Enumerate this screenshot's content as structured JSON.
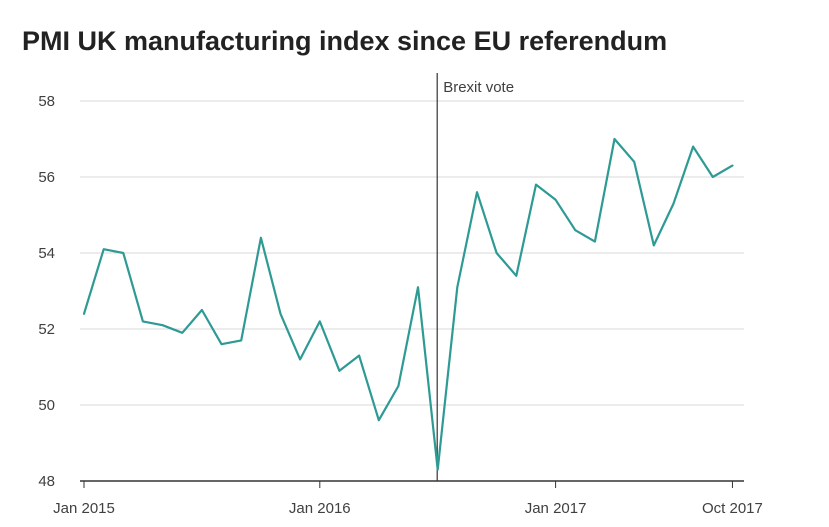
{
  "chart_data": {
    "type": "line",
    "title": "PMI UK manufacturing index since EU referendum",
    "xlabel": "",
    "ylabel": "",
    "ylim": [
      48,
      58
    ],
    "yticks": [
      "48",
      "50",
      "52",
      "54",
      "56",
      "58"
    ],
    "xticks": [
      "Jan 2015",
      "Jan 2016",
      "Jan 2017",
      "Oct 2017"
    ],
    "grid": true,
    "annotation": {
      "label": "Brexit vote",
      "x": "Jul 2016"
    },
    "series": [
      {
        "color": "#2e9a94",
        "x": [
          "Jan 2015",
          "Feb 2015",
          "Mar 2015",
          "Apr 2015",
          "May 2015",
          "Jun 2015",
          "Jul 2015",
          "Aug 2015",
          "Sep 2015",
          "Oct 2015",
          "Nov 2015",
          "Dec 2015",
          "Jan 2016",
          "Feb 2016",
          "Mar 2016",
          "Apr 2016",
          "May 2016",
          "Jun 2016",
          "Jul 2016",
          "Aug 2016",
          "Sep 2016",
          "Oct 2016",
          "Nov 2016",
          "Dec 2016",
          "Jan 2017",
          "Feb 2017",
          "Mar 2017",
          "Apr 2017",
          "May 2017",
          "Jun 2017",
          "Jul 2017",
          "Aug 2017",
          "Sep 2017",
          "Oct 2017"
        ],
        "values": [
          52.4,
          54.1,
          54.0,
          52.2,
          52.1,
          51.9,
          52.5,
          51.6,
          51.7,
          54.4,
          52.4,
          51.2,
          52.2,
          50.9,
          51.3,
          49.6,
          50.5,
          53.1,
          48.3,
          53.1,
          55.6,
          54.0,
          53.4,
          55.8,
          55.4,
          54.6,
          54.3,
          57.0,
          56.4,
          54.2,
          55.3,
          56.8,
          56.0,
          56.3
        ]
      }
    ]
  }
}
